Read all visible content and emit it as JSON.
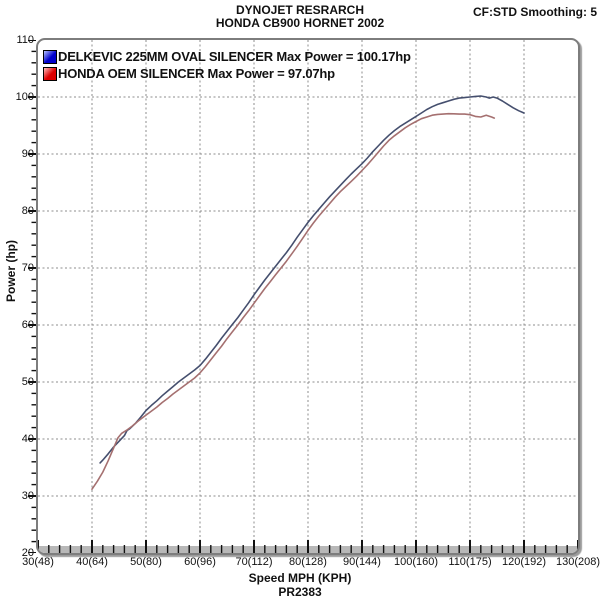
{
  "header": {
    "title_line1": "DYNOJET RESRARCH",
    "title_line2": "HONDA CB900 HORNET 2002",
    "smoothing": "CF:STD Smoothing: 5"
  },
  "footer": {
    "axis_label": "Speed MPH (KPH)",
    "run_id": "PR2383"
  },
  "chart_data": {
    "type": "line",
    "title": "HONDA CB900 HORNET 2002",
    "xlabel": "Speed MPH (KPH)",
    "ylabel": "Power (hp)",
    "x_range": [
      30,
      130
    ],
    "y_range": [
      20,
      110
    ],
    "x_major_step": 10,
    "x_minor_step": 2,
    "y_major_step": 10,
    "y_minor_step": 2,
    "grid": "dashed-major",
    "grid_color": "#8c8c8c",
    "axis_band_color": "#b8b8b8",
    "legend_position": "top-left",
    "x_tick_labels": [
      "30(48)",
      "40(64)",
      "50(80)",
      "60(96)",
      "70(112)",
      "80(128)",
      "90(144)",
      "100(160)",
      "110(175)",
      "120(192)",
      "130(208)"
    ],
    "y_tick_labels": [
      "20",
      "30",
      "40",
      "50",
      "60",
      "70",
      "80",
      "90",
      "100",
      "110"
    ],
    "series": [
      {
        "name": "DELKEVIC 225MM OVAL SILENCER",
        "legend": "DELKEVIC 225MM OVAL SILENCER Max Power = 100.17hp",
        "max_power_hp": 100.17,
        "line_color": "#454f6e",
        "swatch_light": "#b8c4ff",
        "swatch_dark": "#0000cc",
        "points": [
          [
            41.5,
            35.8
          ],
          [
            42,
            36.3
          ],
          [
            43,
            37.4
          ],
          [
            44,
            38.6
          ],
          [
            45,
            39.6
          ],
          [
            46,
            40.6
          ],
          [
            46.5,
            41.5
          ],
          [
            47,
            41.8
          ],
          [
            48,
            42.7
          ],
          [
            49,
            43.8
          ],
          [
            50,
            45.0
          ],
          [
            51,
            45.9
          ],
          [
            52,
            46.7
          ],
          [
            53,
            47.6
          ],
          [
            54,
            48.4
          ],
          [
            55,
            49.2
          ],
          [
            56,
            50.0
          ],
          [
            57,
            50.7
          ],
          [
            58,
            51.4
          ],
          [
            59,
            52.1
          ],
          [
            60,
            52.9
          ],
          [
            61,
            54.0
          ],
          [
            62,
            55.2
          ],
          [
            63,
            56.4
          ],
          [
            64,
            57.7
          ],
          [
            65,
            58.9
          ],
          [
            66,
            60.1
          ],
          [
            67,
            61.3
          ],
          [
            68,
            62.6
          ],
          [
            69,
            63.9
          ],
          [
            70,
            65.3
          ],
          [
            71,
            66.6
          ],
          [
            72,
            67.9
          ],
          [
            73,
            69.1
          ],
          [
            74,
            70.3
          ],
          [
            75,
            71.5
          ],
          [
            76,
            72.7
          ],
          [
            77,
            74.0
          ],
          [
            78,
            75.4
          ],
          [
            79,
            76.7
          ],
          [
            80,
            78.0
          ],
          [
            81,
            79.2
          ],
          [
            82,
            80.3
          ],
          [
            83,
            81.4
          ],
          [
            84,
            82.5
          ],
          [
            85,
            83.5
          ],
          [
            86,
            84.5
          ],
          [
            87,
            85.5
          ],
          [
            88,
            86.5
          ],
          [
            89,
            87.4
          ],
          [
            90,
            88.3
          ],
          [
            91,
            89.3
          ],
          [
            92,
            90.4
          ],
          [
            93,
            91.4
          ],
          [
            94,
            92.4
          ],
          [
            95,
            93.3
          ],
          [
            96,
            94.1
          ],
          [
            97,
            94.8
          ],
          [
            98,
            95.4
          ],
          [
            99,
            96.0
          ],
          [
            100,
            96.6
          ],
          [
            101,
            97.2
          ],
          [
            102,
            97.8
          ],
          [
            103,
            98.3
          ],
          [
            104,
            98.7
          ],
          [
            105,
            99.0
          ],
          [
            106,
            99.3
          ],
          [
            107,
            99.6
          ],
          [
            108,
            99.8
          ],
          [
            109,
            99.9
          ],
          [
            110,
            100.0
          ],
          [
            111,
            100.1
          ],
          [
            112,
            100.17
          ],
          [
            113,
            100.0
          ],
          [
            113.6,
            99.8
          ],
          [
            114.3,
            100.0
          ],
          [
            115,
            99.8
          ],
          [
            116,
            99.3
          ],
          [
            117,
            98.7
          ],
          [
            118,
            98.1
          ],
          [
            119,
            97.6
          ],
          [
            120,
            97.2
          ]
        ]
      },
      {
        "name": "HONDA OEM SILENCER",
        "legend": "HONDA OEM SILENCER Max Power = 97.07hp",
        "max_power_hp": 97.07,
        "line_color": "#a57070",
        "swatch_light": "#ffc0c0",
        "swatch_dark": "#dd0000",
        "points": [
          [
            40,
            31.2
          ],
          [
            41,
            32.6
          ],
          [
            42,
            34.2
          ],
          [
            43,
            36.2
          ],
          [
            44,
            38.4
          ],
          [
            44.8,
            40.2
          ],
          [
            45.5,
            41.0
          ],
          [
            46.5,
            41.6
          ],
          [
            47.5,
            42.3
          ],
          [
            48.5,
            43.1
          ],
          [
            50,
            44.2
          ],
          [
            51,
            44.9
          ],
          [
            52,
            45.6
          ],
          [
            53,
            46.4
          ],
          [
            54,
            47.1
          ],
          [
            55,
            47.9
          ],
          [
            56,
            48.6
          ],
          [
            57,
            49.3
          ],
          [
            58,
            50.0
          ],
          [
            59,
            50.7
          ],
          [
            60,
            51.6
          ],
          [
            61,
            52.7
          ],
          [
            62,
            53.9
          ],
          [
            63,
            55.1
          ],
          [
            64,
            56.3
          ],
          [
            65,
            57.6
          ],
          [
            66,
            58.8
          ],
          [
            67,
            60.0
          ],
          [
            68,
            61.3
          ],
          [
            69,
            62.5
          ],
          [
            70,
            63.8
          ],
          [
            71,
            65.1
          ],
          [
            72,
            66.4
          ],
          [
            73,
            67.6
          ],
          [
            74,
            68.8
          ],
          [
            75,
            70.0
          ],
          [
            76,
            71.2
          ],
          [
            77,
            72.5
          ],
          [
            78,
            73.8
          ],
          [
            79,
            75.2
          ],
          [
            80,
            76.6
          ],
          [
            81,
            77.9
          ],
          [
            82,
            79.1
          ],
          [
            83,
            80.2
          ],
          [
            84,
            81.3
          ],
          [
            85,
            82.4
          ],
          [
            86,
            83.4
          ],
          [
            87,
            84.3
          ],
          [
            88,
            85.2
          ],
          [
            89,
            86.1
          ],
          [
            90,
            87.1
          ],
          [
            91,
            88.1
          ],
          [
            92,
            89.2
          ],
          [
            93,
            90.3
          ],
          [
            94,
            91.4
          ],
          [
            95,
            92.4
          ],
          [
            96,
            93.2
          ],
          [
            97,
            93.9
          ],
          [
            98,
            94.6
          ],
          [
            99,
            95.2
          ],
          [
            100,
            95.7
          ],
          [
            101,
            96.2
          ],
          [
            102,
            96.5
          ],
          [
            103,
            96.8
          ],
          [
            104,
            96.95
          ],
          [
            105,
            97.0
          ],
          [
            106,
            97.07
          ],
          [
            107,
            97.05
          ],
          [
            108,
            97.0
          ],
          [
            109,
            97.0
          ],
          [
            110,
            96.9
          ],
          [
            111,
            96.6
          ],
          [
            112,
            96.5
          ],
          [
            113,
            96.8
          ],
          [
            114,
            96.5
          ],
          [
            114.5,
            96.3
          ]
        ]
      }
    ]
  }
}
